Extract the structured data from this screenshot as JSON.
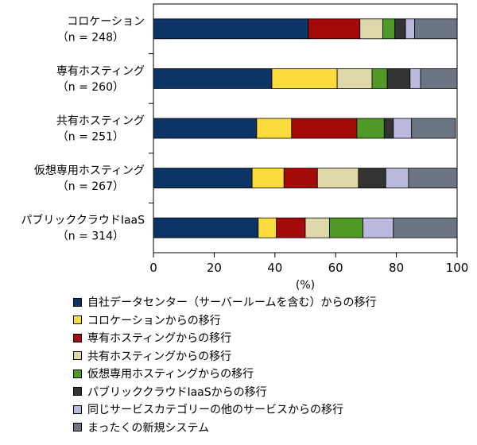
{
  "chart_data": {
    "type": "bar",
    "stacked": true,
    "orientation": "horizontal",
    "title": "",
    "xlabel": "(%)",
    "xlim": [
      0,
      100
    ],
    "xticks": [
      0,
      20,
      40,
      60,
      80,
      100
    ],
    "grid": false,
    "legend_position": "bottom",
    "categories": [
      {
        "name": "コロケーション",
        "n": "（n = 248）"
      },
      {
        "name": "専有ホスティング",
        "n": "（n = 260）"
      },
      {
        "name": "共有ホスティング",
        "n": "（n = 251）"
      },
      {
        "name": "仮想専用ホスティング",
        "n": "（n = 267）"
      },
      {
        "name": "パブリッククラウドIaaS",
        "n": "（n = 314）"
      }
    ],
    "series": [
      {
        "name": "自社データセンター（サーバールームを含む）からの移行",
        "color": "#0d3466",
        "values": [
          51,
          39,
          34,
          32.5,
          34.5
        ]
      },
      {
        "name": "コロケーションからの移行",
        "color": "#fbdc3c",
        "values": [
          0,
          21.5,
          11.5,
          10.5,
          6
        ]
      },
      {
        "name": "専有ホスティングからの移行",
        "color": "#a40a0a",
        "values": [
          17,
          0,
          21.5,
          11,
          9.5
        ]
      },
      {
        "name": "共有ホスティングからの移行",
        "color": "#ded7aa",
        "values": [
          7.5,
          11.5,
          0,
          13.5,
          8
        ]
      },
      {
        "name": "仮想専用ホスティングからの移行",
        "color": "#4f9a26",
        "values": [
          4,
          5,
          9,
          0,
          11
        ]
      },
      {
        "name": "パブリッククラウドIaaSからの移行",
        "color": "#333333",
        "values": [
          3.5,
          7.5,
          3,
          9,
          0
        ]
      },
      {
        "name": "同じサービスカテゴリーの他のサービスからの移行",
        "color": "#b9b9de",
        "values": [
          3,
          3.5,
          6,
          7.5,
          10
        ]
      },
      {
        "name": "まったくの新規システム",
        "color": "#6b7584",
        "values": [
          14,
          12,
          14.5,
          16,
          21
        ]
      }
    ]
  }
}
